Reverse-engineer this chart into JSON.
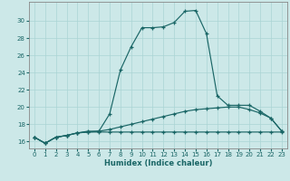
{
  "xlabel": "Humidex (Indice chaleur)",
  "background_color": "#cce8e8",
  "grid_color": "#aad4d4",
  "line_color": "#1a6666",
  "x": [
    0,
    1,
    2,
    3,
    4,
    5,
    6,
    7,
    8,
    9,
    10,
    11,
    12,
    13,
    14,
    15,
    16,
    17,
    18,
    19,
    20,
    21,
    22,
    23
  ],
  "line_flat": [
    16.5,
    15.8,
    16.5,
    16.7,
    17.0,
    17.1,
    17.1,
    17.1,
    17.1,
    17.1,
    17.1,
    17.1,
    17.1,
    17.1,
    17.1,
    17.1,
    17.1,
    17.1,
    17.1,
    17.1,
    17.1,
    17.1,
    17.1,
    17.1
  ],
  "line_mid": [
    16.5,
    15.8,
    16.5,
    16.7,
    17.0,
    17.2,
    17.2,
    17.4,
    17.7,
    18.0,
    18.3,
    18.6,
    18.9,
    19.2,
    19.5,
    19.7,
    19.8,
    19.9,
    20.0,
    20.0,
    19.7,
    19.3,
    18.7,
    17.2
  ],
  "line_top": [
    16.5,
    15.8,
    16.5,
    16.7,
    17.0,
    17.1,
    17.2,
    19.2,
    24.3,
    27.0,
    29.2,
    29.2,
    29.3,
    29.8,
    31.1,
    31.2,
    28.5,
    21.3,
    20.2,
    20.2,
    20.2,
    19.5,
    18.7,
    17.2
  ],
  "xlim": [
    -0.5,
    23.5
  ],
  "ylim": [
    15.2,
    32.2
  ],
  "yticks": [
    16,
    18,
    20,
    22,
    24,
    26,
    28,
    30
  ],
  "xticks": [
    0,
    1,
    2,
    3,
    4,
    5,
    6,
    7,
    8,
    9,
    10,
    11,
    12,
    13,
    14,
    15,
    16,
    17,
    18,
    19,
    20,
    21,
    22,
    23
  ]
}
